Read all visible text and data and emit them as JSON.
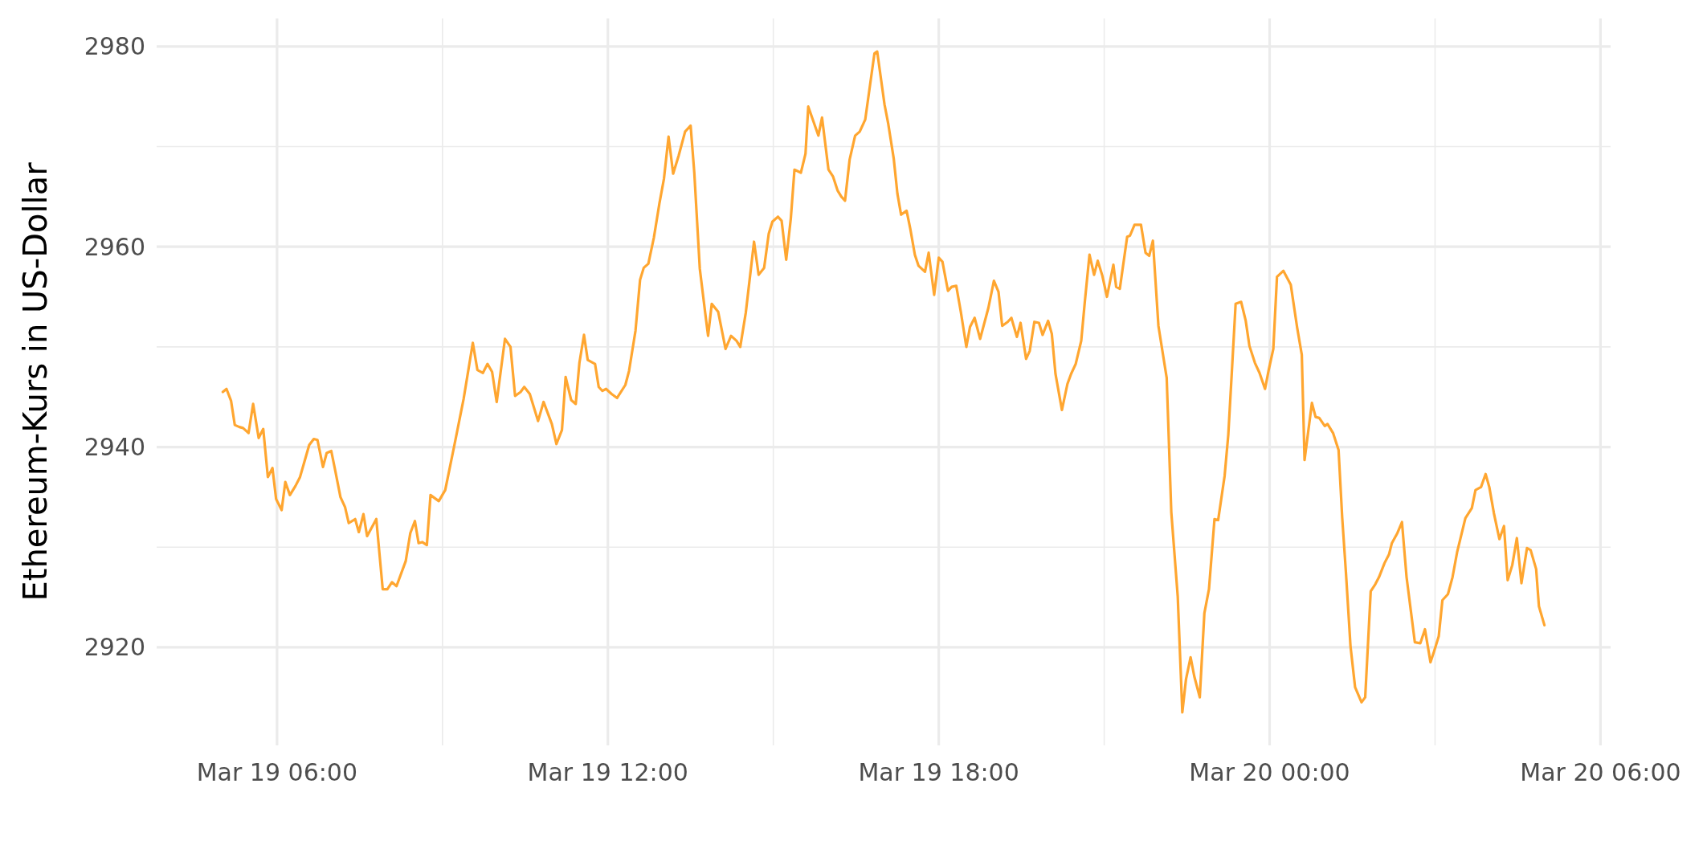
{
  "chart_data": {
    "type": "line",
    "ylabel": "Ethereum-Kurs in US-Dollar",
    "xlim": [
      "--03-19T03:49",
      "--03-20T06:11"
    ],
    "ylim": [
      2910.2,
      2982.8
    ],
    "xticks": [
      {
        "value": "--03-19T06:00",
        "label": "Mar 19 06:00"
      },
      {
        "value": "--03-19T09:00",
        "label": null
      },
      {
        "value": "--03-19T12:00",
        "label": "Mar 19 12:00"
      },
      {
        "value": "--03-19T15:00",
        "label": null
      },
      {
        "value": "--03-19T18:00",
        "label": "Mar 19 18:00"
      },
      {
        "value": "--03-19T21:00",
        "label": null
      },
      {
        "value": "--03-20T00:00",
        "label": "Mar 20 00:00"
      },
      {
        "value": "--03-20T03:00",
        "label": null
      },
      {
        "value": "--03-20T06:00",
        "label": "Mar 20 06:00"
      }
    ],
    "yticks": [
      {
        "value": 2920,
        "label": "2920"
      },
      {
        "value": 2930,
        "label": null
      },
      {
        "value": 2940,
        "label": "2940"
      },
      {
        "value": 2950,
        "label": null
      },
      {
        "value": 2960,
        "label": "2960"
      },
      {
        "value": 2970,
        "label": null
      },
      {
        "value": 2980,
        "label": "2980"
      }
    ],
    "grid": true,
    "series": [
      {
        "color": "#ffa630",
        "x": [
          "--03-19T05:01",
          "--03-19T05:05",
          "--03-19T05:10",
          "--03-19T05:14",
          "--03-19T05:19",
          "--03-19T05:23",
          "--03-19T05:29",
          "--03-19T05:34",
          "--03-19T05:40",
          "--03-19T05:45",
          "--03-19T05:50",
          "--03-19T05:55",
          "--03-19T05:59",
          "--03-19T06:05",
          "--03-19T06:09",
          "--03-19T06:14",
          "--03-19T06:20",
          "--03-19T06:25",
          "--03-19T06:30",
          "--03-19T06:35",
          "--03-19T06:40",
          "--03-19T06:44",
          "--03-19T06:50",
          "--03-19T06:54",
          "--03-19T06:59",
          "--03-19T07:03",
          "--03-19T07:09",
          "--03-19T07:14",
          "--03-19T07:18",
          "--03-19T07:25",
          "--03-19T07:29",
          "--03-19T07:34",
          "--03-19T07:38",
          "--03-19T07:48",
          "--03-19T07:55",
          "--03-19T08:00",
          "--03-19T08:05",
          "--03-19T08:10",
          "--03-19T08:20",
          "--03-19T08:25",
          "--03-19T08:30",
          "--03-19T08:34",
          "--03-19T08:38",
          "--03-19T08:43",
          "--03-19T08:47",
          "--03-19T08:56",
          "--03-19T09:03",
          "--03-19T09:13",
          "--03-19T09:23",
          "--03-19T09:33",
          "--03-19T09:38",
          "--03-19T09:44",
          "--03-19T09:49",
          "--03-19T09:54",
          "--03-19T09:59",
          "--03-19T10:08",
          "--03-19T10:14",
          "--03-19T10:19",
          "--03-19T10:25",
          "--03-19T10:29",
          "--03-19T10:35",
          "--03-19T10:44",
          "--03-19T10:50",
          "--03-19T10:59",
          "--03-19T11:04",
          "--03-19T11:10",
          "--03-19T11:14",
          "--03-19T11:20",
          "--03-19T11:25",
          "--03-19T11:29",
          "--03-19T11:34",
          "--03-19T11:38",
          "--03-19T11:46",
          "--03-19T11:50",
          "--03-19T11:54",
          "--03-19T11:58",
          "--03-19T12:04",
          "--03-19T12:10",
          "--03-19T12:19",
          "--03-19T12:23",
          "--03-19T12:30",
          "--03-19T12:35",
          "--03-19T12:39",
          "--03-19T12:44",
          "--03-19T12:50",
          "--03-19T12:56",
          "--03-19T13:01",
          "--03-19T13:06",
          "--03-19T13:11",
          "--03-19T13:17",
          "--03-19T13:24",
          "--03-19T13:30",
          "--03-19T13:34",
          "--03-19T13:40",
          "--03-19T13:46",
          "--03-19T13:49",
          "--03-19T13:53",
          "--03-19T14:00",
          "--03-19T14:08",
          "--03-19T14:14",
          "--03-19T14:20",
          "--03-19T14:24",
          "--03-19T14:30",
          "--03-19T14:39",
          "--03-19T14:44",
          "--03-19T14:50",
          "--03-19T14:55",
          "--03-19T14:59",
          "--03-19T15:05",
          "--03-19T15:09",
          "--03-19T15:14",
          "--03-19T15:19",
          "--03-19T15:23",
          "--03-19T15:30",
          "--03-19T15:35",
          "--03-19T15:38",
          "--03-19T15:49",
          "--03-19T15:53",
          "--03-19T16:00",
          "--03-19T16:05",
          "--03-19T16:10",
          "--03-19T16:14",
          "--03-19T16:18",
          "--03-19T16:23",
          "--03-19T16:29",
          "--03-19T16:34",
          "--03-19T16:40",
          "--03-19T16:50",
          "--03-19T16:53",
          "--03-19T17:01",
          "--03-19T17:05",
          "--03-19T17:11",
          "--03-19T17:15",
          "--03-19T17:19",
          "--03-19T17:25",
          "--03-19T17:29",
          "--03-19T17:34",
          "--03-19T17:38",
          "--03-19T17:45",
          "--03-19T17:49",
          "--03-19T17:55",
          "--03-19T18:00",
          "--03-19T18:04",
          "--03-19T18:10",
          "--03-19T18:14",
          "--03-19T18:19",
          "--03-19T18:24",
          "--03-19T18:30",
          "--03-19T18:34",
          "--03-19T18:39",
          "--03-19T18:45",
          "--03-19T18:54",
          "--03-19T19:00",
          "--03-19T19:05",
          "--03-19T19:09",
          "--03-19T19:15",
          "--03-19T19:19",
          "--03-19T19:25",
          "--03-19T19:29",
          "--03-19T19:35",
          "--03-19T19:39",
          "--03-19T19:44",
          "--03-19T19:49",
          "--03-19T19:53",
          "--03-19T19:59",
          "--03-19T20:03",
          "--03-19T20:07",
          "--03-19T20:14",
          "--03-19T20:20",
          "--03-19T20:24",
          "--03-19T20:29",
          "--03-19T20:35",
          "--03-19T20:39",
          "--03-19T20:44",
          "--03-19T20:49",
          "--03-19T20:53",
          "--03-19T20:58",
          "--03-19T21:03",
          "--03-19T21:10",
          "--03-19T21:13",
          "--03-19T21:17",
          "--03-19T21:25",
          "--03-19T21:28",
          "--03-19T21:33",
          "--03-19T21:40",
          "--03-19T21:45",
          "--03-19T21:49",
          "--03-19T21:53",
          "--03-19T21:59",
          "--03-19T22:04",
          "--03-19T22:08",
          "--03-19T22:13",
          "--03-19T22:20",
          "--03-19T22:25",
          "--03-19T22:29",
          "--03-19T22:34",
          "--03-19T22:38",
          "--03-19T22:44",
          "--03-19T22:49",
          "--03-19T22:54",
          "--03-19T23:00",
          "--03-19T23:04",
          "--03-19T23:11",
          "--03-19T23:15",
          "--03-19T23:19",
          "--03-19T23:23",
          "--03-19T23:29",
          "--03-19T23:34",
          "--03-19T23:38",
          "--03-19T23:44",
          "--03-19T23:49",
          "--03-19T23:55",
          "--03-19T23:59",
          "--03-20T00:04",
          "--03-20T00:08",
          "--03-20T00:15",
          "--03-20T00:23",
          "--03-20T00:30",
          "--03-20T00:35",
          "--03-20T00:38",
          "--03-20T00:46",
          "--03-20T00:50",
          "--03-20T00:54",
          "--03-20T01:00",
          "--03-20T01:03",
          "--03-20T01:09",
          "--03-20T01:15",
          "--03-20T01:19",
          "--03-20T01:23",
          "--03-20T01:28",
          "--03-20T01:33",
          "--03-20T01:40",
          "--03-20T01:44",
          "--03-20T01:50",
          "--03-20T01:55",
          "--03-20T01:59",
          "--03-20T02:05",
          "--03-20T02:10",
          "--03-20T02:13",
          "--03-20T02:19",
          "--03-20T02:24",
          "--03-20T02:29",
          "--03-20T02:38",
          "--03-20T02:44",
          "--03-20T02:49",
          "--03-20T02:55",
          "--03-20T02:59",
          "--03-20T03:04",
          "--03-20T03:08",
          "--03-20T03:14",
          "--03-20T03:19",
          "--03-20T03:24",
          "--03-20T03:33",
          "--03-20T03:40",
          "--03-20T03:44",
          "--03-20T03:50",
          "--03-20T03:55",
          "--03-20T03:59",
          "--03-20T04:04",
          "--03-20T04:10",
          "--03-20T04:15",
          "--03-20T04:19",
          "--03-20T04:24",
          "--03-20T04:29",
          "--03-20T04:34",
          "--03-20T04:40",
          "--03-20T04:44",
          "--03-20T04:50",
          "--03-20T04:53",
          "--03-20T04:59"
        ],
        "values": [
          2945.5,
          2945.8,
          2944.6,
          2942.2,
          2942.0,
          2941.9,
          2941.4,
          2944.3,
          2940.9,
          2941.8,
          2937.0,
          2937.9,
          2934.8,
          2933.7,
          2936.5,
          2935.2,
          2936.1,
          2937.0,
          2938.6,
          2940.2,
          2940.8,
          2940.7,
          2938.0,
          2939.4,
          2939.6,
          2937.8,
          2935.0,
          2934.0,
          2932.4,
          2932.8,
          2931.5,
          2933.3,
          2931.1,
          2932.8,
          2925.8,
          2925.8,
          2926.5,
          2926.1,
          2928.6,
          2931.4,
          2932.6,
          2930.4,
          2930.5,
          2930.2,
          2935.2,
          2934.6,
          2935.7,
          2940.2,
          2944.8,
          2950.4,
          2947.7,
          2947.4,
          2948.3,
          2947.5,
          2944.5,
          2950.8,
          2950.0,
          2945.1,
          2945.5,
          2946.0,
          2945.3,
          2942.6,
          2944.5,
          2942.3,
          2940.3,
          2941.7,
          2947.0,
          2944.7,
          2944.3,
          2948.4,
          2951.2,
          2948.7,
          2948.3,
          2946.0,
          2945.6,
          2945.8,
          2945.3,
          2944.9,
          2946.2,
          2947.6,
          2951.6,
          2956.7,
          2957.9,
          2958.3,
          2960.9,
          2964.3,
          2966.8,
          2971.0,
          2967.3,
          2969.1,
          2971.5,
          2972.1,
          2967.4,
          2957.8,
          2953.3,
          2951.1,
          2954.3,
          2953.5,
          2949.8,
          2951.1,
          2950.6,
          2950.0,
          2953.4,
          2960.5,
          2957.2,
          2957.9,
          2961.3,
          2962.5,
          2963.0,
          2962.6,
          2958.7,
          2962.8,
          2967.7,
          2967.4,
          2969.3,
          2974.0,
          2971.1,
          2972.9,
          2967.7,
          2967.0,
          2965.6,
          2965.0,
          2964.6,
          2968.7,
          2971.1,
          2971.5,
          2972.7,
          2979.3,
          2979.5,
          2974.2,
          2972.3,
          2968.8,
          2965.3,
          2963.2,
          2963.6,
          2961.8,
          2959.2,
          2958.1,
          2957.5,
          2959.4,
          2955.2,
          2958.9,
          2958.5,
          2955.6,
          2956.0,
          2956.1,
          2953.5,
          2950.0,
          2952.0,
          2952.9,
          2950.8,
          2953.9,
          2956.6,
          2955.5,
          2952.1,
          2952.5,
          2952.9,
          2951.0,
          2952.4,
          2948.8,
          2949.6,
          2952.5,
          2952.4,
          2951.2,
          2952.6,
          2951.3,
          2947.3,
          2943.7,
          2946.3,
          2947.3,
          2948.3,
          2950.6,
          2954.6,
          2959.2,
          2957.2,
          2958.6,
          2957.1,
          2955.0,
          2958.2,
          2956.0,
          2955.8,
          2961.0,
          2961.1,
          2962.2,
          2962.2,
          2959.4,
          2959.1,
          2960.6,
          2952.1,
          2949.2,
          2946.9,
          2933.5,
          2925.1,
          2913.5,
          2916.8,
          2919.0,
          2917.1,
          2915.0,
          2923.4,
          2925.8,
          2932.8,
          2932.7,
          2937.1,
          2941.2,
          2947.7,
          2954.3,
          2954.5,
          2952.6,
          2950.1,
          2948.4,
          2947.4,
          2945.8,
          2947.7,
          2949.8,
          2957.0,
          2957.6,
          2956.2,
          2951.9,
          2949.2,
          2938.7,
          2944.4,
          2943.0,
          2942.9,
          2942.1,
          2942.3,
          2941.4,
          2939.7,
          2932.9,
          2927.5,
          2920.1,
          2916.0,
          2914.5,
          2915.0,
          2925.6,
          2926.3,
          2927.0,
          2928.4,
          2929.3,
          2930.4,
          2931.4,
          2932.5,
          2927.0,
          2920.5,
          2920.4,
          2921.8,
          2918.5,
          2919.6,
          2921.1,
          2924.7,
          2925.3,
          2927.0,
          2929.5,
          2932.9,
          2933.9,
          2935.7,
          2936.0,
          2937.3,
          2936.0,
          2933.4,
          2930.8,
          2932.1,
          2926.7,
          2928.2,
          2930.9,
          2926.4,
          2929.9,
          2929.7,
          2927.8,
          2924.1,
          2922.2
        ]
      }
    ]
  }
}
